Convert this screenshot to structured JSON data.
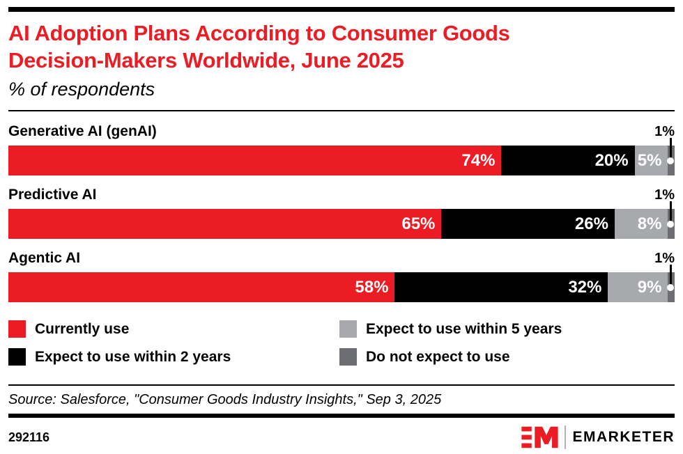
{
  "header": {
    "title_lines": [
      "AI Adoption Plans According to Consumer Goods",
      "Decision-Makers Worldwide, June 2025"
    ],
    "subtitle": "% of respondents"
  },
  "colors": {
    "accent_red": "#EC1C24",
    "black": "#000000",
    "light_gray": "#A7A9AC",
    "dark_gray": "#6D6E71",
    "white": "#FFFFFF"
  },
  "chart_data": {
    "type": "bar",
    "orientation": "horizontal_stacked",
    "title": "AI Adoption Plans According to Consumer Goods Decision-Makers Worldwide, June 2025",
    "subtitle": "% of respondents",
    "categories": [
      "Generative AI (genAI)",
      "Predictive AI",
      "Agentic AI"
    ],
    "series": [
      {
        "name": "Currently use",
        "color": "#EC1C24",
        "values": [
          74,
          65,
          58
        ]
      },
      {
        "name": "Expect to use within 2 years",
        "color": "#000000",
        "values": [
          20,
          26,
          32
        ]
      },
      {
        "name": "Expect to use within 5 years",
        "color": "#A7A9AC",
        "values": [
          5,
          8,
          9
        ]
      },
      {
        "name": "Do not expect to use",
        "color": "#6D6E71",
        "values": [
          1,
          1,
          1
        ]
      }
    ],
    "value_suffix": "%",
    "callout_series": "Do not expect to use",
    "xlim": [
      0,
      100
    ],
    "grid": false,
    "legend_position": "bottom"
  },
  "source": "Source: Salesforce, \"Consumer Goods Industry Insights,\" Sep 3, 2025",
  "footer": {
    "chart_id": "292116",
    "logo_monogram": "EM",
    "brand_wordmark": "EMARKETER"
  }
}
